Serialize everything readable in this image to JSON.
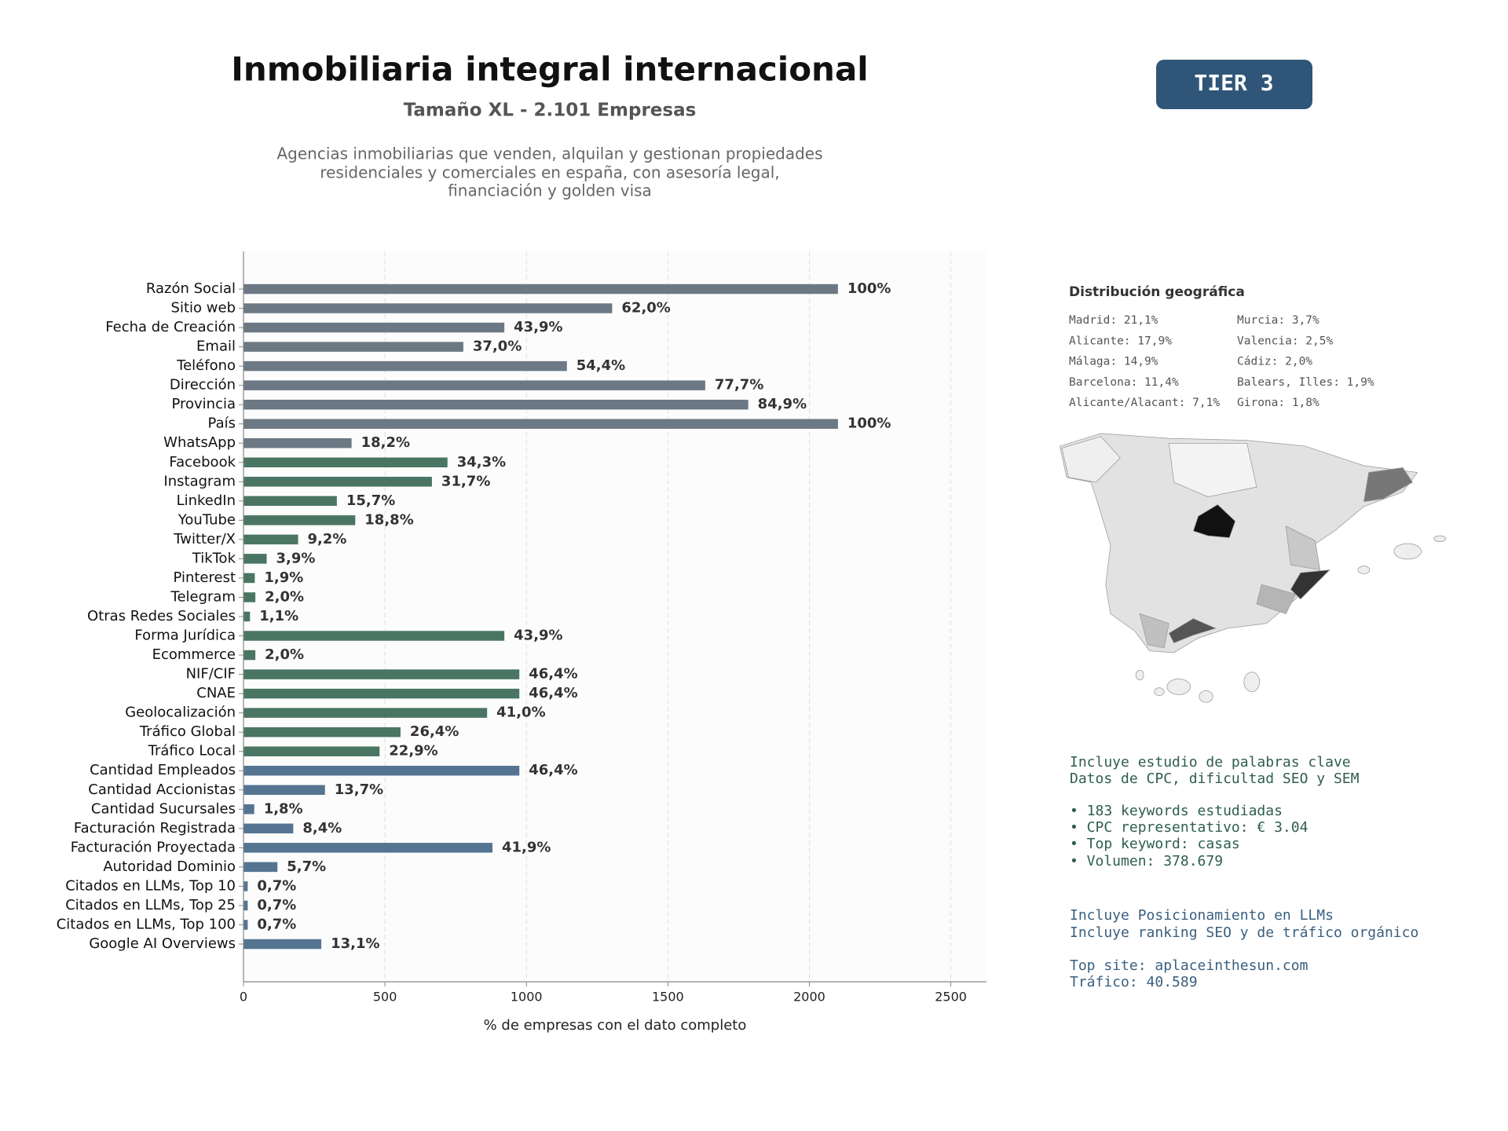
{
  "header": {
    "title": "Inmobiliaria integral internacional",
    "subtitle": "Tamaño XL - 2.101 Empresas",
    "description": [
      "Agencias inmobiliarias que venden, alquilan y gestionan propiedades",
      "residenciales y comerciales en españa, con asesoría legal,",
      "financiación y golden visa"
    ],
    "badge": "TIER 3"
  },
  "chart_data": {
    "type": "hbar",
    "xlabel": "% de empresas con el dato completo",
    "categories": [
      "Razón Social",
      "Sitio web",
      "Fecha de Creación",
      "Email",
      "Teléfono",
      "Dirección",
      "Provincia",
      "País",
      "WhatsApp",
      "Facebook",
      "Instagram",
      "LinkedIn",
      "YouTube",
      "Twitter/X",
      "TikTok",
      "Pinterest",
      "Telegram",
      "Otras Redes Sociales",
      "Forma Jurídica",
      "Ecommerce",
      "NIF/CIF",
      "CNAE",
      "Geolocalización",
      "Tráfico Global",
      "Tráfico Local",
      "Cantidad Empleados",
      "Cantidad Accionistas",
      "Cantidad Sucursales",
      "Facturación Registrada",
      "Facturación Proyectada",
      "Autoridad Dominio",
      "Citados en LLMs, Top 10",
      "Citados en LLMs, Top 25",
      "Citados en LLMs, Top 100",
      "Google AI Overviews"
    ],
    "values": [
      2101,
      1303,
      922,
      777,
      1143,
      1632,
      1784,
      2101,
      382,
      721,
      666,
      330,
      395,
      193,
      82,
      40,
      42,
      23,
      922,
      42,
      975,
      975,
      861,
      555,
      481,
      975,
      288,
      38,
      176,
      880,
      120,
      15,
      15,
      15,
      275
    ],
    "value_labels": [
      "100%",
      "62,0%",
      "43,9%",
      "37,0%",
      "54,4%",
      "77,7%",
      "84,9%",
      "100%",
      "18,2%",
      "34,3%",
      "31,7%",
      "15,7%",
      "18,8%",
      "9,2%",
      "3,9%",
      "1,9%",
      "2,0%",
      "1,1%",
      "43,9%",
      "2,0%",
      "46,4%",
      "46,4%",
      "41,0%",
      "26,4%",
      "22,9%",
      "46,4%",
      "13,7%",
      "1,8%",
      "8,4%",
      "41,9%",
      "5,7%",
      "0,7%",
      "0,7%",
      "0,7%",
      "13,1%"
    ],
    "colors": [
      "#6c7884",
      "#6c7884",
      "#6c7884",
      "#6c7884",
      "#6c7884",
      "#6c7884",
      "#6c7884",
      "#6c7884",
      "#6c7884",
      "#4a7563",
      "#4a7563",
      "#4a7563",
      "#4a7563",
      "#4a7563",
      "#4a7563",
      "#4a7563",
      "#4a7563",
      "#4a7563",
      "#4a7563",
      "#4a7563",
      "#4a7563",
      "#4a7563",
      "#4a7563",
      "#4a7563",
      "#4a7563",
      "#557492",
      "#557492",
      "#557492",
      "#557492",
      "#557492",
      "#557492",
      "#557492",
      "#557492",
      "#557492",
      "#557492"
    ],
    "xlim": [
      0,
      2626
    ],
    "xticks": [
      0,
      500,
      1000,
      1500,
      2000,
      2500
    ],
    "grid": true
  },
  "geo": {
    "title": "Distribución geográfica",
    "left": [
      "Madrid: 21,1%",
      "Alicante: 17,9%",
      "Málaga: 14,9%",
      "Barcelona: 11,4%",
      "Alicante/Alacant: 7,1%"
    ],
    "right": [
      "Murcia: 3,7%",
      "Valencia: 2,5%",
      "Cádiz: 2,0%",
      "Balears, Illes: 1,9%",
      "Girona: 1,8%"
    ]
  },
  "seo": {
    "intro": [
      "Incluye estudio de palabras clave",
      "Datos de CPC, dificultad SEO y SEM"
    ],
    "bullets": [
      "• 183 keywords estudiadas",
      "• CPC representativo: € 3.04",
      "• Top keyword: casas",
      "• Volumen: 378.679"
    ]
  },
  "llm": {
    "lines": [
      "Incluye Posicionamiento en LLMs",
      "Incluye ranking SEO y de tráfico orgánico"
    ],
    "top": [
      "Top site: aplaceinthesun.com",
      "Tráfico: 40.589"
    ]
  }
}
